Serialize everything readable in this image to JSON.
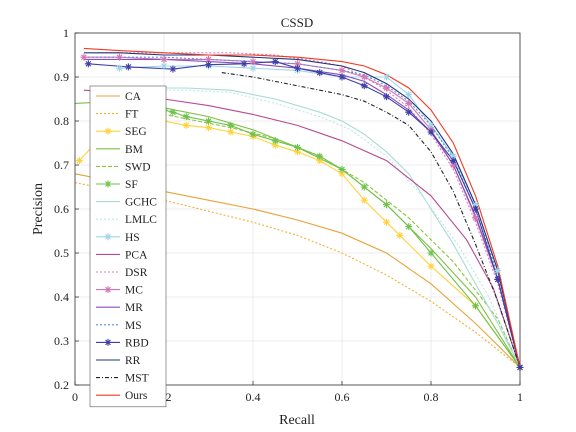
{
  "chart_data": {
    "type": "line",
    "title": "CSSD",
    "xlabel": "Recall",
    "ylabel": "Precision",
    "xlim": [
      0,
      1
    ],
    "ylim": [
      0.2,
      1
    ],
    "xticks": [
      "0",
      "0.2",
      "0.4",
      "0.6",
      "0.8",
      "1"
    ],
    "yticks": [
      "0.2",
      "0.3",
      "0.4",
      "0.5",
      "0.6",
      "0.7",
      "0.8",
      "0.9",
      "1"
    ],
    "grid": true,
    "legend_position": "left",
    "series": [
      {
        "name": "CA",
        "color": "#e8a33a",
        "dash": "solid",
        "marker": "none",
        "points": [
          [
            0,
            0.68
          ],
          [
            0.1,
            0.66
          ],
          [
            0.2,
            0.64
          ],
          [
            0.3,
            0.62
          ],
          [
            0.4,
            0.6
          ],
          [
            0.5,
            0.575
          ],
          [
            0.6,
            0.545
          ],
          [
            0.7,
            0.5
          ],
          [
            0.8,
            0.43
          ],
          [
            0.9,
            0.34
          ],
          [
            0.95,
            0.29
          ],
          [
            1,
            0.24
          ]
        ]
      },
      {
        "name": "FT",
        "color": "#f2b134",
        "dash": "2,2",
        "marker": "none",
        "points": [
          [
            0,
            0.66
          ],
          [
            0.1,
            0.64
          ],
          [
            0.2,
            0.62
          ],
          [
            0.3,
            0.595
          ],
          [
            0.4,
            0.57
          ],
          [
            0.5,
            0.54
          ],
          [
            0.6,
            0.5
          ],
          [
            0.7,
            0.45
          ],
          [
            0.8,
            0.39
          ],
          [
            0.9,
            0.32
          ],
          [
            1,
            0.24
          ]
        ]
      },
      {
        "name": "SEG",
        "color": "#ffd23c",
        "dash": "solid",
        "marker": "star",
        "points": [
          [
            0.01,
            0.71
          ],
          [
            0.1,
            0.81
          ],
          [
            0.2,
            0.8
          ],
          [
            0.25,
            0.79
          ],
          [
            0.3,
            0.785
          ],
          [
            0.35,
            0.775
          ],
          [
            0.4,
            0.765
          ],
          [
            0.45,
            0.745
          ],
          [
            0.5,
            0.73
          ],
          [
            0.55,
            0.71
          ],
          [
            0.6,
            0.68
          ],
          [
            0.65,
            0.62
          ],
          [
            0.7,
            0.57
          ],
          [
            0.73,
            0.54
          ],
          [
            0.8,
            0.47
          ],
          [
            0.9,
            0.38
          ],
          [
            1,
            0.24
          ]
        ]
      },
      {
        "name": "BM",
        "color": "#7ebf47",
        "dash": "solid",
        "marker": "none",
        "points": [
          [
            0,
            0.84
          ],
          [
            0.1,
            0.845
          ],
          [
            0.2,
            0.83
          ],
          [
            0.3,
            0.81
          ],
          [
            0.4,
            0.78
          ],
          [
            0.5,
            0.74
          ],
          [
            0.6,
            0.69
          ],
          [
            0.7,
            0.61
          ],
          [
            0.8,
            0.51
          ],
          [
            0.9,
            0.4
          ],
          [
            1,
            0.24
          ]
        ]
      },
      {
        "name": "SWD",
        "color": "#8cc63f",
        "dash": "4,2",
        "marker": "none",
        "points": [
          [
            0.05,
            0.83
          ],
          [
            0.15,
            0.825
          ],
          [
            0.25,
            0.805
          ],
          [
            0.35,
            0.785
          ],
          [
            0.45,
            0.76
          ],
          [
            0.55,
            0.72
          ],
          [
            0.65,
            0.66
          ],
          [
            0.75,
            0.58
          ],
          [
            0.85,
            0.48
          ],
          [
            0.95,
            0.35
          ],
          [
            1,
            0.24
          ]
        ]
      },
      {
        "name": "SF",
        "color": "#6cc24a",
        "dash": "solid",
        "marker": "star",
        "points": [
          [
            0.2,
            0.825
          ],
          [
            0.22,
            0.82
          ],
          [
            0.25,
            0.81
          ],
          [
            0.3,
            0.8
          ],
          [
            0.35,
            0.79
          ],
          [
            0.4,
            0.77
          ],
          [
            0.45,
            0.755
          ],
          [
            0.5,
            0.74
          ],
          [
            0.55,
            0.72
          ],
          [
            0.6,
            0.69
          ],
          [
            0.65,
            0.65
          ],
          [
            0.7,
            0.61
          ],
          [
            0.75,
            0.56
          ],
          [
            0.8,
            0.5
          ],
          [
            0.9,
            0.38
          ],
          [
            1,
            0.24
          ]
        ]
      },
      {
        "name": "GCHC",
        "color": "#a9dcd4",
        "dash": "solid",
        "marker": "none",
        "points": [
          [
            0.05,
            0.87
          ],
          [
            0.15,
            0.875
          ],
          [
            0.25,
            0.875
          ],
          [
            0.35,
            0.87
          ],
          [
            0.45,
            0.85
          ],
          [
            0.55,
            0.82
          ],
          [
            0.6,
            0.8
          ],
          [
            0.65,
            0.77
          ],
          [
            0.7,
            0.73
          ],
          [
            0.75,
            0.68
          ],
          [
            0.8,
            0.6
          ],
          [
            0.85,
            0.52
          ],
          [
            0.9,
            0.43
          ],
          [
            0.95,
            0.34
          ],
          [
            1,
            0.24
          ]
        ]
      },
      {
        "name": "LMLC",
        "color": "#bfe4ea",
        "dash": "2,2",
        "marker": "none",
        "points": [
          [
            0.05,
            0.865
          ],
          [
            0.15,
            0.87
          ],
          [
            0.25,
            0.87
          ],
          [
            0.35,
            0.865
          ],
          [
            0.45,
            0.84
          ],
          [
            0.55,
            0.81
          ],
          [
            0.62,
            0.78
          ],
          [
            0.7,
            0.72
          ],
          [
            0.78,
            0.63
          ],
          [
            0.86,
            0.52
          ],
          [
            0.93,
            0.4
          ],
          [
            1,
            0.24
          ]
        ]
      },
      {
        "name": "HS",
        "color": "#9fd5e8",
        "dash": "solid",
        "marker": "star",
        "points": [
          [
            0.1,
            0.92
          ],
          [
            0.2,
            0.925
          ],
          [
            0.3,
            0.925
          ],
          [
            0.4,
            0.92
          ],
          [
            0.5,
            0.915
          ],
          [
            0.6,
            0.9
          ],
          [
            0.7,
            0.9
          ],
          [
            0.75,
            0.86
          ],
          [
            0.8,
            0.79
          ],
          [
            0.85,
            0.72
          ],
          [
            0.9,
            0.61
          ],
          [
            0.95,
            0.46
          ],
          [
            1,
            0.24
          ]
        ]
      },
      {
        "name": "PCA",
        "color": "#b84a93",
        "dash": "solid",
        "marker": "none",
        "points": [
          [
            0.02,
            0.87
          ],
          [
            0.1,
            0.865
          ],
          [
            0.2,
            0.85
          ],
          [
            0.3,
            0.835
          ],
          [
            0.4,
            0.815
          ],
          [
            0.5,
            0.79
          ],
          [
            0.6,
            0.755
          ],
          [
            0.7,
            0.71
          ],
          [
            0.8,
            0.63
          ],
          [
            0.88,
            0.53
          ],
          [
            0.94,
            0.42
          ],
          [
            1,
            0.24
          ]
        ]
      },
      {
        "name": "DSR",
        "color": "#e07bb6",
        "dash": "2,2",
        "marker": "none",
        "points": [
          [
            0.05,
            0.955
          ],
          [
            0.15,
            0.955
          ],
          [
            0.25,
            0.955
          ],
          [
            0.35,
            0.955
          ],
          [
            0.45,
            0.95
          ],
          [
            0.55,
            0.935
          ],
          [
            0.6,
            0.925
          ],
          [
            0.65,
            0.9
          ],
          [
            0.7,
            0.87
          ],
          [
            0.75,
            0.83
          ],
          [
            0.8,
            0.77
          ],
          [
            0.85,
            0.69
          ],
          [
            0.9,
            0.57
          ],
          [
            0.95,
            0.43
          ],
          [
            1,
            0.24
          ]
        ]
      },
      {
        "name": "MC",
        "color": "#d576b4",
        "dash": "solid",
        "marker": "star",
        "points": [
          [
            0.02,
            0.945
          ],
          [
            0.1,
            0.945
          ],
          [
            0.2,
            0.94
          ],
          [
            0.3,
            0.94
          ],
          [
            0.4,
            0.935
          ],
          [
            0.5,
            0.93
          ],
          [
            0.6,
            0.915
          ],
          [
            0.65,
            0.9
          ],
          [
            0.7,
            0.875
          ],
          [
            0.75,
            0.84
          ],
          [
            0.8,
            0.78
          ],
          [
            0.85,
            0.7
          ],
          [
            0.9,
            0.58
          ],
          [
            0.95,
            0.44
          ],
          [
            1,
            0.24
          ]
        ]
      },
      {
        "name": "MR",
        "color": "#8c4dbb",
        "dash": "solid",
        "marker": "none",
        "points": [
          [
            0.02,
            0.94
          ],
          [
            0.1,
            0.94
          ],
          [
            0.2,
            0.94
          ],
          [
            0.3,
            0.935
          ],
          [
            0.4,
            0.93
          ],
          [
            0.5,
            0.92
          ],
          [
            0.6,
            0.905
          ],
          [
            0.65,
            0.89
          ],
          [
            0.7,
            0.86
          ],
          [
            0.75,
            0.825
          ],
          [
            0.8,
            0.775
          ],
          [
            0.85,
            0.7
          ],
          [
            0.9,
            0.585
          ],
          [
            0.95,
            0.44
          ],
          [
            1,
            0.24
          ]
        ]
      },
      {
        "name": "MS",
        "color": "#5a8fd6",
        "dash": "2,2",
        "marker": "none",
        "points": [
          [
            0.02,
            0.945
          ],
          [
            0.1,
            0.945
          ],
          [
            0.2,
            0.945
          ],
          [
            0.3,
            0.94
          ],
          [
            0.4,
            0.935
          ],
          [
            0.5,
            0.93
          ],
          [
            0.6,
            0.915
          ],
          [
            0.65,
            0.905
          ],
          [
            0.7,
            0.88
          ],
          [
            0.75,
            0.845
          ],
          [
            0.8,
            0.79
          ],
          [
            0.85,
            0.715
          ],
          [
            0.9,
            0.6
          ],
          [
            0.95,
            0.45
          ],
          [
            1,
            0.24
          ]
        ]
      },
      {
        "name": "RBD",
        "color": "#3e3fa6",
        "dash": "solid",
        "marker": "star",
        "points": [
          [
            0.03,
            0.93
          ],
          [
            0.12,
            0.923
          ],
          [
            0.22,
            0.918
          ],
          [
            0.3,
            0.928
          ],
          [
            0.38,
            0.93
          ],
          [
            0.45,
            0.935
          ],
          [
            0.5,
            0.92
          ],
          [
            0.55,
            0.91
          ],
          [
            0.6,
            0.9
          ],
          [
            0.65,
            0.88
          ],
          [
            0.7,
            0.855
          ],
          [
            0.75,
            0.82
          ],
          [
            0.8,
            0.775
          ],
          [
            0.85,
            0.71
          ],
          [
            0.9,
            0.6
          ],
          [
            0.95,
            0.44
          ],
          [
            1,
            0.24
          ]
        ]
      },
      {
        "name": "RR",
        "color": "#223377",
        "dash": "solid",
        "marker": "none",
        "points": [
          [
            0.02,
            0.955
          ],
          [
            0.1,
            0.955
          ],
          [
            0.2,
            0.95
          ],
          [
            0.3,
            0.95
          ],
          [
            0.4,
            0.945
          ],
          [
            0.5,
            0.94
          ],
          [
            0.6,
            0.925
          ],
          [
            0.65,
            0.91
          ],
          [
            0.7,
            0.885
          ],
          [
            0.75,
            0.85
          ],
          [
            0.8,
            0.8
          ],
          [
            0.85,
            0.725
          ],
          [
            0.9,
            0.61
          ],
          [
            0.95,
            0.46
          ],
          [
            1,
            0.24
          ]
        ]
      },
      {
        "name": "MST",
        "color": "#222222",
        "dash": "4,2,1,2",
        "marker": "none",
        "points": [
          [
            0.33,
            0.91
          ],
          [
            0.4,
            0.9
          ],
          [
            0.5,
            0.88
          ],
          [
            0.6,
            0.86
          ],
          [
            0.65,
            0.845
          ],
          [
            0.7,
            0.82
          ],
          [
            0.75,
            0.79
          ],
          [
            0.8,
            0.73
          ],
          [
            0.85,
            0.64
          ],
          [
            0.9,
            0.52
          ],
          [
            0.95,
            0.39
          ],
          [
            1,
            0.24
          ]
        ]
      },
      {
        "name": "Ours",
        "color": "#ef3b24",
        "dash": "solid",
        "marker": "none",
        "points": [
          [
            0.02,
            0.965
          ],
          [
            0.1,
            0.96
          ],
          [
            0.2,
            0.955
          ],
          [
            0.3,
            0.95
          ],
          [
            0.4,
            0.95
          ],
          [
            0.5,
            0.945
          ],
          [
            0.6,
            0.935
          ],
          [
            0.65,
            0.925
          ],
          [
            0.7,
            0.905
          ],
          [
            0.75,
            0.875
          ],
          [
            0.8,
            0.825
          ],
          [
            0.85,
            0.75
          ],
          [
            0.9,
            0.63
          ],
          [
            0.95,
            0.47
          ],
          [
            1,
            0.24
          ]
        ]
      }
    ]
  }
}
